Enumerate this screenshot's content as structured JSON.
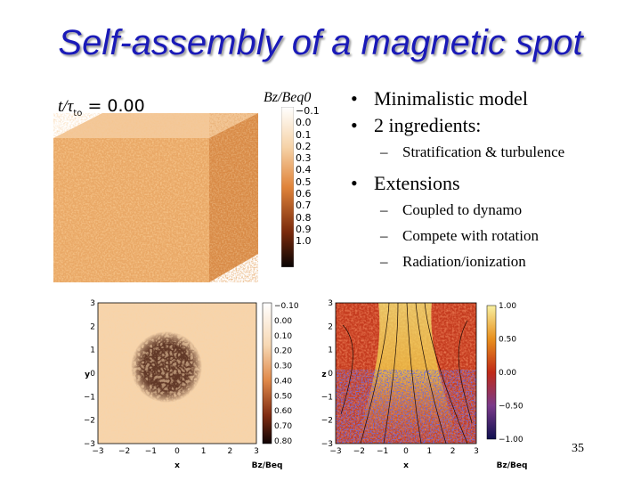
{
  "slide": {
    "title": "Self-assembly of a magnetic spot",
    "page_number": "35"
  },
  "bullets": [
    {
      "level": 1,
      "text": "Minimalistic model"
    },
    {
      "level": 1,
      "text": "2 ingredients:"
    },
    {
      "level": 2,
      "text": "Stratification & turbulence"
    },
    {
      "level": 1,
      "text": "Extensions"
    },
    {
      "level": 2,
      "text": "Coupled to dynamo"
    },
    {
      "level": 2,
      "text": "Compete with rotation"
    },
    {
      "level": 2,
      "text": "Radiation/ionization"
    }
  ],
  "cube_figure": {
    "time_label_var": "t/τ",
    "time_label_sub": "to",
    "time_label_value": "= 0.00",
    "colorbar_title": "Bz/Beq0",
    "colorbar_ticks": [
      "−0.1",
      "0.0",
      "0.1",
      "0.2",
      "0.3",
      "0.4",
      "0.5",
      "0.6",
      "0.7",
      "0.8",
      "0.9",
      "1.0"
    ]
  },
  "slice_left": {
    "axis_ticks": [
      "−3",
      "−2",
      "−1",
      "0",
      "1",
      "2",
      "3"
    ],
    "xlabel": "x",
    "ylabel": "y",
    "colorbar_ticks": [
      "−0.10",
      "0.00",
      "0.10",
      "0.20",
      "0.30",
      "0.40",
      "0.50",
      "0.60",
      "0.70",
      "0.80"
    ],
    "colorbar_label": "Bz/Beq"
  },
  "slice_right": {
    "axis_ticks": [
      "−3",
      "−2",
      "−1",
      "0",
      "1",
      "2",
      "3"
    ],
    "xlabel": "x",
    "ylabel": "z",
    "colorbar_ticks": [
      "1.00",
      "0.50",
      "0.00",
      "−0.50",
      "−1.00"
    ],
    "colorbar_label": "Bz/Beq"
  },
  "colors": {
    "title": "#1a1ab8",
    "cube_orange": "#e08a3c",
    "field_red": "#c83218",
    "field_yellow": "#f0d84a"
  }
}
